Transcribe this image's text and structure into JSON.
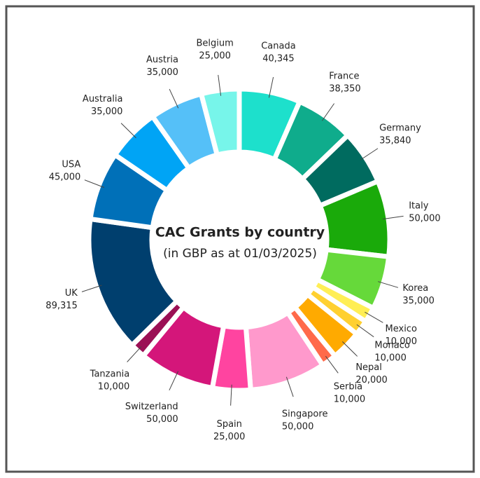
{
  "chart_data": {
    "type": "donut",
    "title": "CAC Grants by country",
    "subtitle": "(in GBP as at 01/03/2025)",
    "categories": [
      "Canada",
      "France",
      "Germany",
      "Italy",
      "Korea",
      "Mexico",
      "Monaco",
      "Nepal",
      "Serbia",
      "Singapore",
      "Spain",
      "Switzerland",
      "Tanzania",
      "UK",
      "USA",
      "Australia",
      "Austria",
      "Belgium"
    ],
    "values": [
      40345,
      38350,
      35840,
      50000,
      35000,
      10000,
      10000,
      20000,
      10000,
      50000,
      25000,
      50000,
      10000,
      89315,
      45000,
      35000,
      35000,
      25000
    ],
    "value_labels": [
      "40,345",
      "38,350",
      "35,840",
      "50,000",
      "35,000",
      "10,000",
      "10,000",
      "20,000",
      "10,000",
      "50,000",
      "25,000",
      "50,000",
      "10,000",
      "89,315",
      "45,000",
      "35,000",
      "35,000",
      "25,000"
    ],
    "colors": [
      "#1de0cc",
      "#0fac8c",
      "#006b5f",
      "#1aaa0a",
      "#66d93a",
      "#ffee55",
      "#ffd030",
      "#ffaa00",
      "#ff6a4a",
      "#ff99cc",
      "#ff44a0",
      "#d4167a",
      "#9b1055",
      "#003f6e",
      "#0070b8",
      "#00a4f5",
      "#55c0f8",
      "#77f5ea"
    ]
  }
}
